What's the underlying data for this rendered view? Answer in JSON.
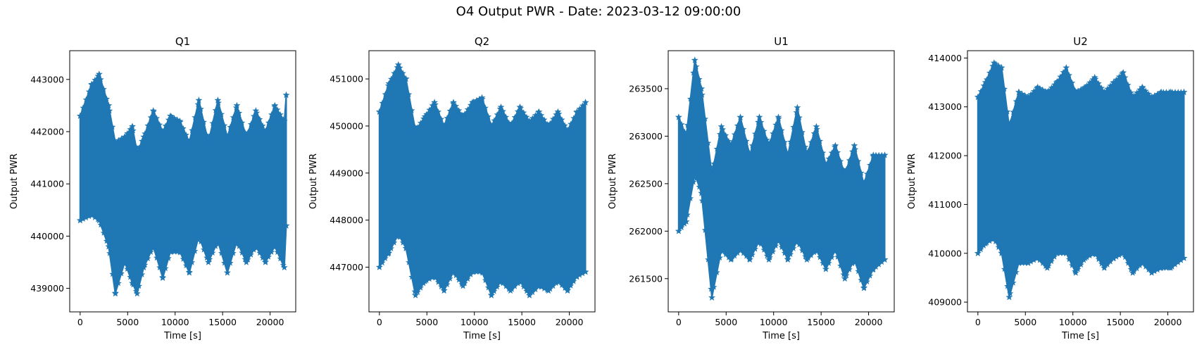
{
  "figure": {
    "title": "O4 Output PWR - Date: 2023-03-12 09:00:00"
  },
  "colors": {
    "series": "#1f77b4",
    "axes": "#000000",
    "background": "#ffffff"
  },
  "chart_data": [
    {
      "type": "scatter",
      "marker": "star",
      "title": "Q1",
      "xlabel": "Time [s]",
      "ylabel": "Output PWR",
      "xlim": [
        -1100,
        22700
      ],
      "ylim": [
        438550,
        443550
      ],
      "xticks": [
        0,
        5000,
        10000,
        15000,
        20000
      ],
      "yticks": [
        439000,
        440000,
        441000,
        442000,
        443000
      ],
      "series": [
        {
          "x": [
            0,
            1200,
            2000,
            3000,
            3700,
            4700,
            5500,
            6000,
            6700,
            7700,
            8700,
            9500,
            10500,
            11500,
            12500,
            13500,
            14500,
            15500,
            16500,
            17500,
            18500,
            19500,
            20500,
            21500,
            21700
          ],
          "upper": [
            442300,
            442900,
            443100,
            442500,
            441800,
            441900,
            442100,
            441600,
            441900,
            442400,
            442000,
            442300,
            442200,
            441800,
            442600,
            441800,
            442600,
            441900,
            442500,
            441900,
            442400,
            442000,
            442500,
            442200,
            442700
          ],
          "lower": [
            440300,
            440400,
            440300,
            439800,
            438900,
            439500,
            439100,
            438900,
            439400,
            439800,
            439200,
            439700,
            439700,
            439300,
            440000,
            439500,
            439900,
            439300,
            439900,
            439500,
            439800,
            439500,
            439800,
            439400,
            440200
          ]
        }
      ]
    },
    {
      "type": "scatter",
      "marker": "star",
      "title": "Q2",
      "xlabel": "Time [s]",
      "ylabel": "Output PWR",
      "xlim": [
        -1100,
        22700
      ],
      "ylim": [
        446050,
        451600
      ],
      "xticks": [
        0,
        5000,
        10000,
        15000,
        20000
      ],
      "yticks": [
        447000,
        448000,
        449000,
        450000,
        451000
      ],
      "series": [
        {
          "x": [
            0,
            1000,
            2000,
            2800,
            3800,
            4800,
            5800,
            6800,
            7800,
            8800,
            9800,
            10800,
            11800,
            12800,
            13800,
            14800,
            15800,
            16800,
            17800,
            18800,
            19800,
            20800,
            21700
          ],
          "upper": [
            450300,
            450900,
            451300,
            451000,
            449900,
            450200,
            450500,
            450000,
            450500,
            450200,
            450500,
            450600,
            450000,
            450400,
            450000,
            450400,
            450100,
            450300,
            450000,
            450300,
            449900,
            450300,
            450500
          ],
          "lower": [
            447000,
            447300,
            447700,
            447400,
            446400,
            446700,
            446800,
            446500,
            446900,
            446600,
            446900,
            446900,
            446400,
            446700,
            446500,
            446700,
            446400,
            446600,
            446500,
            446700,
            446500,
            446800,
            446900
          ]
        }
      ]
    },
    {
      "type": "scatter",
      "marker": "star",
      "title": "U1",
      "xlabel": "Time [s]",
      "ylabel": "Output PWR",
      "xlim": [
        -1100,
        22700
      ],
      "ylim": [
        261150,
        263900
      ],
      "xticks": [
        0,
        5000,
        10000,
        15000,
        20000
      ],
      "yticks": [
        261500,
        262000,
        262500,
        263000,
        263500
      ],
      "series": [
        {
          "x": [
            0,
            800,
            1700,
            2400,
            3500,
            4500,
            5500,
            6500,
            7500,
            8500,
            9500,
            10500,
            11500,
            12500,
            13500,
            14500,
            15500,
            16500,
            17500,
            18500,
            19500,
            20500,
            21700
          ],
          "upper": [
            263200,
            263000,
            263800,
            263500,
            262600,
            263100,
            262900,
            263200,
            262800,
            263200,
            262900,
            263200,
            262800,
            263300,
            262800,
            263100,
            262700,
            262900,
            262600,
            262900,
            262500,
            262800,
            262800
          ],
          "lower": [
            262000,
            262100,
            262600,
            262400,
            261300,
            261800,
            261700,
            261800,
            261700,
            261900,
            261700,
            261900,
            261700,
            261900,
            261700,
            261800,
            261600,
            261800,
            261500,
            261700,
            261400,
            261600,
            261700
          ]
        }
      ]
    },
    {
      "type": "scatter",
      "marker": "star",
      "title": "U2",
      "xlabel": "Time [s]",
      "ylabel": "Output PWR",
      "xlim": [
        -1100,
        22700
      ],
      "ylim": [
        408800,
        414150
      ],
      "xticks": [
        0,
        5000,
        10000,
        15000,
        20000
      ],
      "yticks": [
        409000,
        410000,
        411000,
        412000,
        413000,
        414000
      ],
      "series": [
        {
          "x": [
            0,
            800,
            1700,
            2500,
            3300,
            4300,
            5300,
            6300,
            7300,
            8300,
            9300,
            10300,
            11300,
            12300,
            13300,
            14300,
            15300,
            16300,
            17300,
            18300,
            19300,
            20300,
            21700
          ],
          "upper": [
            413200,
            413500,
            413900,
            413800,
            412600,
            413300,
            413200,
            413400,
            413300,
            413500,
            413800,
            413300,
            413400,
            413600,
            413300,
            413500,
            413700,
            413200,
            413400,
            413200,
            413300,
            413300,
            413300
          ],
          "lower": [
            410000,
            410200,
            410300,
            410000,
            409100,
            409800,
            409800,
            409900,
            409700,
            410000,
            410000,
            409600,
            409900,
            410000,
            409700,
            409900,
            410000,
            409600,
            409800,
            409600,
            409700,
            409700,
            409900
          ]
        }
      ]
    }
  ]
}
